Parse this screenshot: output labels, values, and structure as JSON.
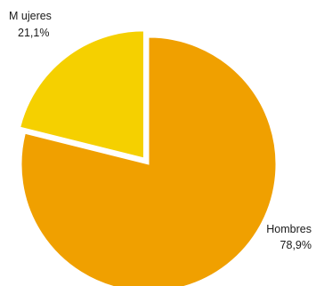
{
  "chart_data": {
    "type": "pie",
    "title": "",
    "legend": "none",
    "slices": [
      {
        "label": "Mujeres",
        "display_label": "M ujeres",
        "value": 21.1,
        "value_text": "21,1%",
        "color": "#f5d000",
        "exploded": true
      },
      {
        "label": "Hombres",
        "display_label": "Hombres",
        "value": 78.9,
        "value_text": "78,9%",
        "color": "#f0a000",
        "exploded": false
      }
    ]
  }
}
